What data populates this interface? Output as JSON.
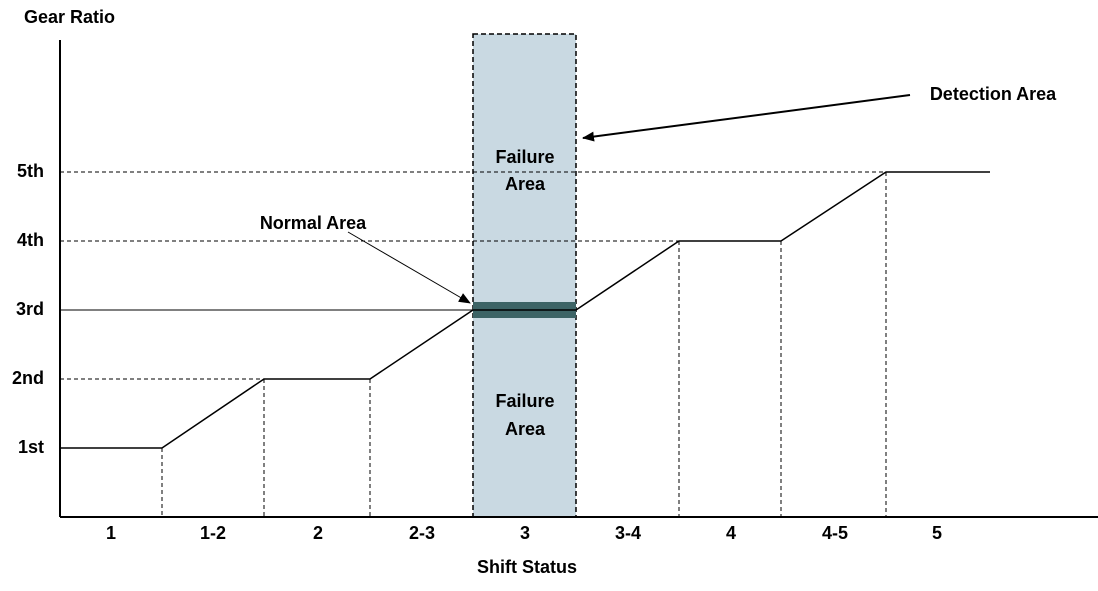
{
  "axes": {
    "y_label": "Gear Ratio",
    "x_label": "Shift Status"
  },
  "gear_levels": [
    "5th",
    "4th",
    "3rd",
    "2nd",
    "1st"
  ],
  "shift_states": [
    "1",
    "1-2",
    "2",
    "2-3",
    "3",
    "3-4",
    "4",
    "4-5",
    "5"
  ],
  "annotations": {
    "failure_upper": [
      "Failure",
      "Area"
    ],
    "failure_lower": [
      "Failure",
      "Area"
    ],
    "normal_area": "Normal Area",
    "detection_area": "Detection Area"
  }
}
